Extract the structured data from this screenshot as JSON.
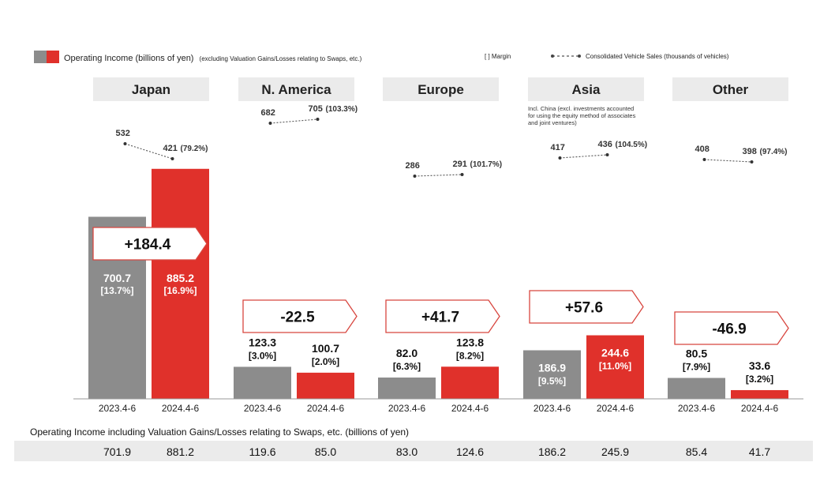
{
  "legend": {
    "operating_income_label": "Operating Income (billions of yen)",
    "operating_income_note": "(excluding Valuation Gains/Losses relating to Swaps, etc.)",
    "margin_label": "[     ] Margin",
    "sales_label": "Consolidated Vehicle Sales (thousands of vehicles)"
  },
  "colors": {
    "prior": "#8c8c8c",
    "current": "#e0312b",
    "header_bg": "#ebebeb",
    "footer_bg": "#ebebeb",
    "arrow_border": "#d8463f"
  },
  "chart_data": {
    "type": "bar",
    "periods": [
      "2023.4-6",
      "2024.4-6"
    ],
    "ylim": [
      0,
      1000
    ],
    "regions": [
      {
        "name": "Japan",
        "values": [
          700.7,
          885.2
        ],
        "value_labels": [
          "700.7",
          "885.2"
        ],
        "margins": [
          "[13.7%]",
          "[16.9%]"
        ],
        "difference": "+184.4",
        "sales": [
          532,
          421
        ],
        "sales_labels": [
          "532",
          "421"
        ],
        "sales_yoy": "(79.2%)",
        "footer": [
          "701.9",
          "881.2"
        ],
        "note": ""
      },
      {
        "name": "N. America",
        "values": [
          123.3,
          100.7
        ],
        "value_labels": [
          "123.3",
          "100.7"
        ],
        "margins": [
          "[3.0%]",
          "[2.0%]"
        ],
        "difference": "-22.5",
        "sales": [
          682,
          705
        ],
        "sales_labels": [
          "682",
          "705"
        ],
        "sales_yoy": "(103.3%)",
        "footer": [
          "119.6",
          "85.0"
        ],
        "note": ""
      },
      {
        "name": "Europe",
        "values": [
          82.0,
          123.8
        ],
        "value_labels": [
          "82.0",
          "123.8"
        ],
        "margins": [
          "[6.3%]",
          "[8.2%]"
        ],
        "difference": "+41.7",
        "sales": [
          286,
          291
        ],
        "sales_labels": [
          "286",
          "291"
        ],
        "sales_yoy": "(101.7%)",
        "footer": [
          "83.0",
          "124.6"
        ],
        "note": ""
      },
      {
        "name": "Asia",
        "values": [
          186.9,
          244.6
        ],
        "value_labels": [
          "186.9",
          "244.6"
        ],
        "margins": [
          "[9.5%]",
          "[11.0%]"
        ],
        "difference": "+57.6",
        "sales": [
          417,
          436
        ],
        "sales_labels": [
          "417",
          "436"
        ],
        "sales_yoy": "(104.5%)",
        "footer": [
          "186.2",
          "245.9"
        ],
        "note": "Incl. China (excl. investments accounted for using the equity method of associates and joint ventures)"
      },
      {
        "name": "Other",
        "values": [
          80.5,
          33.6
        ],
        "value_labels": [
          "80.5",
          "33.6"
        ],
        "margins": [
          "[7.9%]",
          "[3.2%]"
        ],
        "difference": "-46.9",
        "sales": [
          408,
          398
        ],
        "sales_labels": [
          "408",
          "398"
        ],
        "sales_yoy": "(97.4%)",
        "footer": [
          "85.4",
          "41.7"
        ],
        "note": ""
      }
    ],
    "footer_title": "Operating Income including Valuation Gains/Losses relating to Swaps, etc. (billions of yen)"
  }
}
